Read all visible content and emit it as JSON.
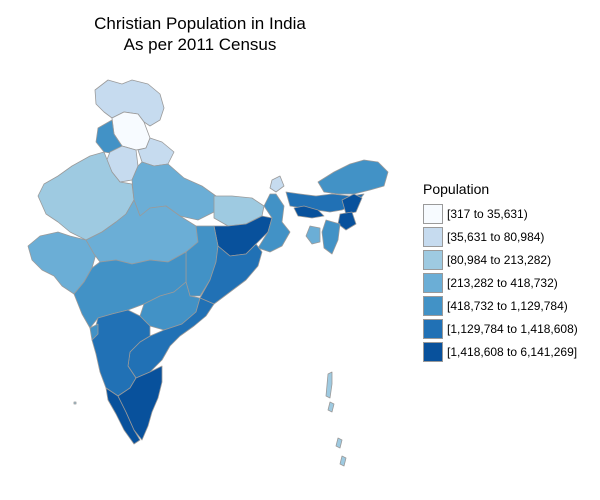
{
  "title": {
    "line1": "Christian Population in India",
    "line2": "As per 2011 Census"
  },
  "legend": {
    "title": "Population",
    "classes": [
      {
        "label": "[317 to 35,631)",
        "color": "#f7fbff"
      },
      {
        "label": "[35,631 to 80,984)",
        "color": "#c6dbef"
      },
      {
        "label": "[80,984 to 213,282)",
        "color": "#9ecae1"
      },
      {
        "label": "[213,282 to 418,732)",
        "color": "#6baed6"
      },
      {
        "label": "[418,732 to 1,129,784)",
        "color": "#4292c6"
      },
      {
        "label": "[1,129,784 to 1,418,608)",
        "color": "#2171b5"
      },
      {
        "label": "[1,418,608 to 6,141,269]",
        "color": "#08519c"
      }
    ]
  },
  "regions": [
    {
      "name": "ladakh-jk",
      "class": 1
    },
    {
      "name": "himachal",
      "class": 0
    },
    {
      "name": "punjab",
      "class": 4
    },
    {
      "name": "uttarakhand",
      "class": 1
    },
    {
      "name": "haryana",
      "class": 1
    },
    {
      "name": "rajasthan",
      "class": 2
    },
    {
      "name": "uttar-pradesh",
      "class": 3
    },
    {
      "name": "bihar",
      "class": 2
    },
    {
      "name": "sikkim",
      "class": 1
    },
    {
      "name": "gujarat",
      "class": 3
    },
    {
      "name": "madhya-pradesh",
      "class": 3
    },
    {
      "name": "jharkhand",
      "class": 6
    },
    {
      "name": "west-bengal",
      "class": 4
    },
    {
      "name": "chhattisgarh",
      "class": 4
    },
    {
      "name": "odisha",
      "class": 5
    },
    {
      "name": "maharashtra",
      "class": 4
    },
    {
      "name": "telangana",
      "class": 4
    },
    {
      "name": "andhra-pradesh",
      "class": 5
    },
    {
      "name": "karnataka",
      "class": 5
    },
    {
      "name": "goa",
      "class": 4
    },
    {
      "name": "kerala",
      "class": 6
    },
    {
      "name": "tamil-nadu",
      "class": 6
    },
    {
      "name": "arunachal",
      "class": 4
    },
    {
      "name": "assam",
      "class": 5
    },
    {
      "name": "meghalaya",
      "class": 6
    },
    {
      "name": "nagaland",
      "class": 6
    },
    {
      "name": "manipur",
      "class": 6
    },
    {
      "name": "mizoram",
      "class": 4
    },
    {
      "name": "tripura",
      "class": 3
    },
    {
      "name": "andaman-nicobar",
      "class": 2
    }
  ]
}
